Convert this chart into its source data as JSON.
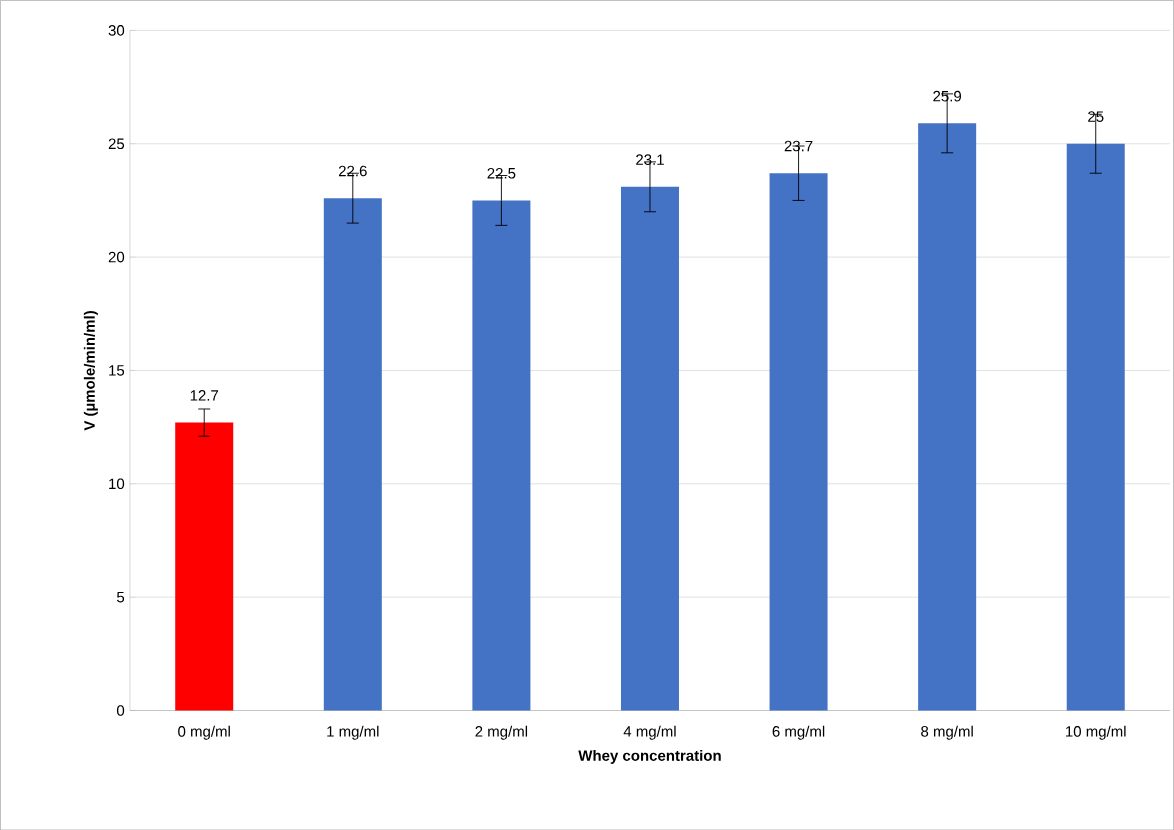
{
  "chart_data": {
    "type": "bar",
    "xlabel": "Whey concentration",
    "ylabel": "V (µmole/min/ml)",
    "categories": [
      "0 mg/ml",
      "1 mg/ml",
      "2 mg/ml",
      "4 mg/ml",
      "6 mg/ml",
      "8 mg/ml",
      "10 mg/ml"
    ],
    "values": [
      12.7,
      22.6,
      22.5,
      23.1,
      23.7,
      25.9,
      25
    ],
    "errors": [
      0.6,
      1.1,
      1.1,
      1.1,
      1.2,
      1.3,
      1.3
    ],
    "colors": [
      "#ff0000",
      "#4472c4",
      "#4472c4",
      "#4472c4",
      "#4472c4",
      "#4472c4",
      "#4472c4"
    ],
    "ylim": [
      0,
      30
    ],
    "yticks": [
      0,
      5,
      10,
      15,
      20,
      25,
      30
    ],
    "grid": "y",
    "data_labels": true
  }
}
